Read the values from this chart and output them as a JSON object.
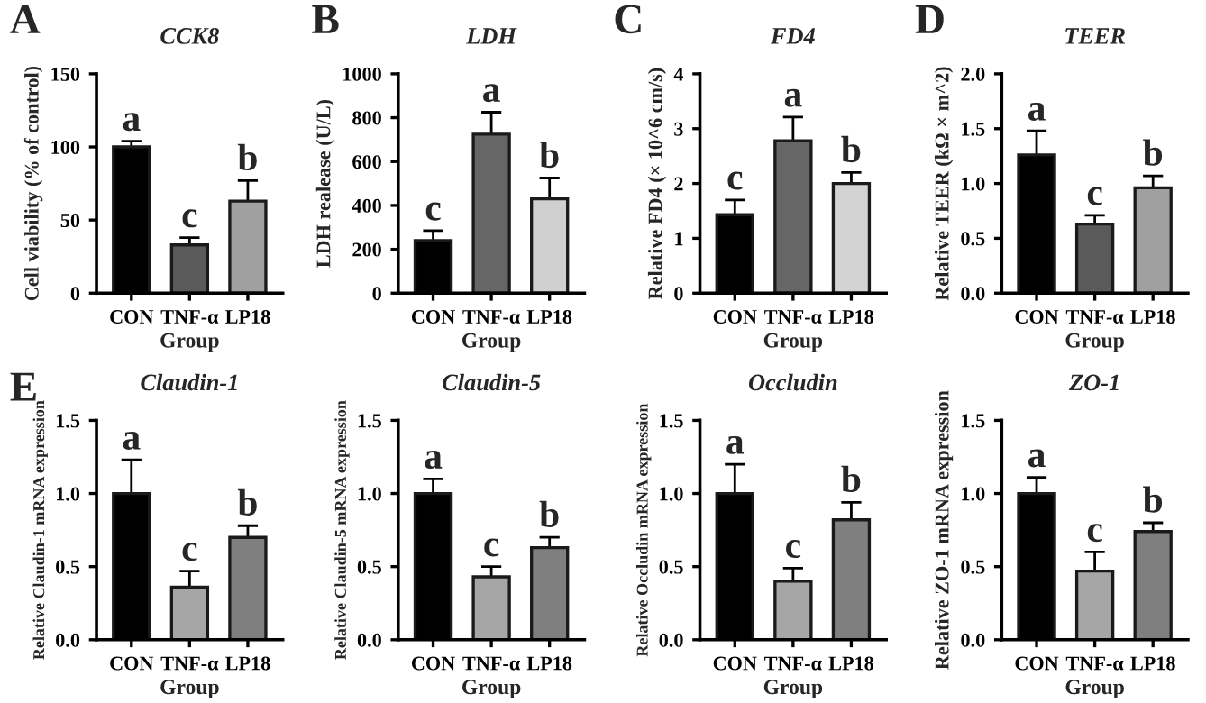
{
  "chart_data": [
    {
      "type": "bar",
      "title": "CCK8",
      "xlabel": "Group",
      "ylabel": "Cell viability (% of control)",
      "categories": [
        "CON",
        "TNF-α",
        "LP18"
      ],
      "values": [
        100,
        33,
        63
      ],
      "errors": [
        4,
        5,
        14
      ],
      "colors": [
        "#000000",
        "#5a5a5a",
        "#a0a0a0"
      ],
      "ylim": [
        0,
        150
      ],
      "yticks": [
        0,
        50,
        100,
        150
      ],
      "annotations": [
        "A",
        {
          "text": "a",
          "x": "CON",
          "y": 104
        },
        {
          "text": "c",
          "x": "TNF-α",
          "y": 38
        },
        {
          "text": "b",
          "x": "LP18",
          "y": 77
        }
      ]
    },
    {
      "type": "bar",
      "title": "LDH",
      "xlabel": "Group",
      "ylabel": "LDH realease (U/L)",
      "categories": [
        "CON",
        "TNF-α",
        "LP18"
      ],
      "values": [
        240,
        725,
        430
      ],
      "errors": [
        45,
        100,
        95
      ],
      "colors": [
        "#000000",
        "#666666",
        "#d0d0d0"
      ],
      "ylim": [
        0,
        1000
      ],
      "yticks": [
        0,
        200,
        400,
        600,
        800,
        1000
      ],
      "annotations": [
        "B",
        {
          "text": "c",
          "x": "CON",
          "y": 285
        },
        {
          "text": "a",
          "x": "TNF-α",
          "y": 825
        },
        {
          "text": "b",
          "x": "LP18",
          "y": 525
        }
      ]
    },
    {
      "type": "bar",
      "title": "FD4",
      "xlabel": "Group",
      "ylabel": "Relative FD4 (× 10^6 cm/s)",
      "categories": [
        "CON",
        "TNF-α",
        "LP18"
      ],
      "values": [
        1.43,
        2.78,
        2.0
      ],
      "errors": [
        0.27,
        0.43,
        0.2
      ],
      "colors": [
        "#000000",
        "#666666",
        "#d3d3d3"
      ],
      "ylim": [
        0,
        4
      ],
      "yticks": [
        0,
        1,
        2,
        3,
        4
      ],
      "annotations": [
        "C",
        {
          "text": "c",
          "x": "CON",
          "y": 1.7
        },
        {
          "text": "a",
          "x": "TNF-α",
          "y": 3.21
        },
        {
          "text": "b",
          "x": "LP18",
          "y": 2.2
        }
      ]
    },
    {
      "type": "bar",
      "title": "TEER",
      "xlabel": "Group",
      "ylabel": "Relative TEER (kΩ × m^2)",
      "categories": [
        "CON",
        "TNF-α",
        "LP18"
      ],
      "values": [
        1.26,
        0.63,
        0.96
      ],
      "errors": [
        0.22,
        0.08,
        0.11
      ],
      "colors": [
        "#000000",
        "#5a5a5a",
        "#a0a0a0"
      ],
      "ylim": [
        0,
        2.0
      ],
      "yticks": [
        {
          "value": 0,
          "label": "0.0"
        },
        {
          "value": 0.5,
          "label": "0.5"
        },
        {
          "value": 1,
          "label": "1.0"
        },
        {
          "value": 1.5,
          "label": "1.5"
        },
        {
          "value": 2,
          "label": "2.0"
        }
      ],
      "annotations": [
        "D",
        {
          "text": "a",
          "x": "CON",
          "y": 1.48
        },
        {
          "text": "c",
          "x": "TNF-α",
          "y": 0.71
        },
        {
          "text": "b",
          "x": "LP18",
          "y": 1.07
        }
      ]
    },
    {
      "type": "bar",
      "title": "Claudin-1",
      "xlabel": "Group",
      "ylabel": "Relative Claudin-1 mRNA expression",
      "categories": [
        "CON",
        "TNF-α",
        "LP18"
      ],
      "values": [
        1.0,
        0.36,
        0.7
      ],
      "errors": [
        0.23,
        0.11,
        0.08
      ],
      "colors": [
        "#000000",
        "#a6a6a6",
        "#7f7f7f"
      ],
      "ylim": [
        0,
        1.5
      ],
      "yticks": [
        {
          "value": 0,
          "label": "0.0"
        },
        {
          "value": 0.5,
          "label": "0.5"
        },
        {
          "value": 1,
          "label": "1.0"
        },
        {
          "value": 1.5,
          "label": "1.5"
        }
      ],
      "annotations": [
        "E",
        {
          "text": "a",
          "x": "CON",
          "y": 1.23
        },
        {
          "text": "c",
          "x": "TNF-α",
          "y": 0.47
        },
        {
          "text": "b",
          "x": "LP18",
          "y": 0.78
        }
      ]
    },
    {
      "type": "bar",
      "title": "Claudin-5",
      "xlabel": "Group",
      "ylabel": "Relative Claudin-5 mRNA expression",
      "categories": [
        "CON",
        "TNF-α",
        "LP18"
      ],
      "values": [
        1.0,
        0.43,
        0.63
      ],
      "errors": [
        0.1,
        0.07,
        0.07
      ],
      "colors": [
        "#000000",
        "#a6a6a6",
        "#7f7f7f"
      ],
      "ylim": [
        0,
        1.5
      ],
      "yticks": [
        {
          "value": 0,
          "label": "0.0"
        },
        {
          "value": 0.5,
          "label": "0.5"
        },
        {
          "value": 1,
          "label": "1.0"
        },
        {
          "value": 1.5,
          "label": "1.5"
        }
      ],
      "annotations": [
        {
          "text": "a",
          "x": "CON",
          "y": 1.1
        },
        {
          "text": "c",
          "x": "TNF-α",
          "y": 0.5
        },
        {
          "text": "b",
          "x": "LP18",
          "y": 0.7
        }
      ]
    },
    {
      "type": "bar",
      "title": "Occludin",
      "xlabel": "Group",
      "ylabel": "Relative Occludin mRNA expression",
      "categories": [
        "CON",
        "TNF-α",
        "LP18"
      ],
      "values": [
        1.0,
        0.4,
        0.82
      ],
      "errors": [
        0.2,
        0.09,
        0.12
      ],
      "colors": [
        "#000000",
        "#a6a6a6",
        "#7f7f7f"
      ],
      "ylim": [
        0,
        1.5
      ],
      "yticks": [
        {
          "value": 0,
          "label": "0.0"
        },
        {
          "value": 0.5,
          "label": "0.5"
        },
        {
          "value": 1,
          "label": "1.0"
        },
        {
          "value": 1.5,
          "label": "1.5"
        }
      ],
      "annotations": [
        {
          "text": "a",
          "x": "CON",
          "y": 1.2
        },
        {
          "text": "c",
          "x": "TNF-α",
          "y": 0.49
        },
        {
          "text": "b",
          "x": "LP18",
          "y": 0.94
        }
      ]
    },
    {
      "type": "bar",
      "title": "ZO-1",
      "xlabel": "Group",
      "ylabel": "Relative ZO-1 mRNA expression",
      "categories": [
        "CON",
        "TNF-α",
        "LP18"
      ],
      "values": [
        1.0,
        0.47,
        0.74
      ],
      "errors": [
        0.11,
        0.13,
        0.06
      ],
      "colors": [
        "#000000",
        "#a6a6a6",
        "#7f7f7f"
      ],
      "ylim": [
        0,
        1.5
      ],
      "yticks": [
        {
          "value": 0,
          "label": "0.0"
        },
        {
          "value": 0.5,
          "label": "0.5"
        },
        {
          "value": 1,
          "label": "1.0"
        },
        {
          "value": 1.5,
          "label": "1.5"
        }
      ],
      "annotations": [
        {
          "text": "a",
          "x": "CON",
          "y": 1.11
        },
        {
          "text": "c",
          "x": "TNF-α",
          "y": 0.6
        },
        {
          "text": "b",
          "x": "LP18",
          "y": 0.8
        }
      ]
    }
  ]
}
